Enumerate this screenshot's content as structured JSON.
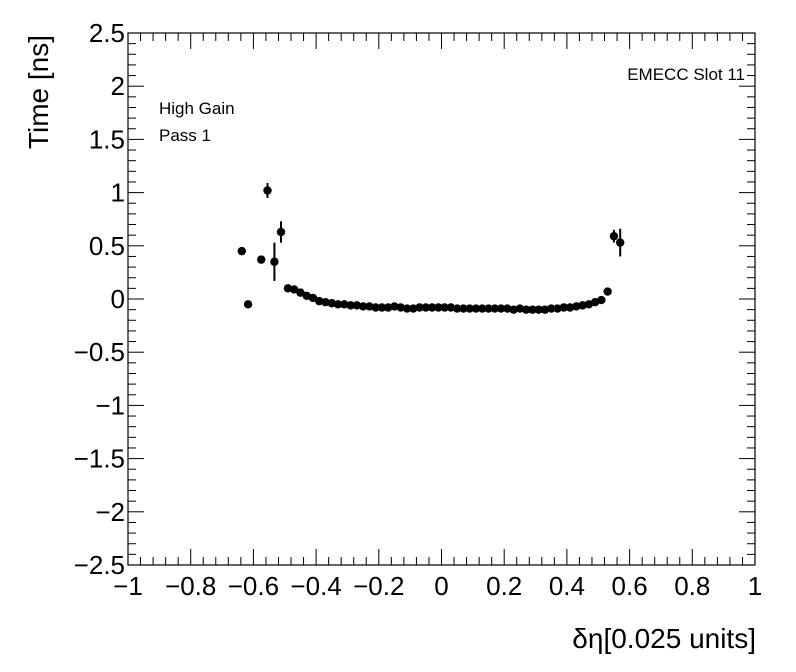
{
  "chart_data": {
    "type": "scatter",
    "title": "",
    "xlabel": "δη[0.025 units]",
    "ylabel": "Time [ns]",
    "xlim": [
      -1,
      1
    ],
    "ylim": [
      -2.5,
      2.5
    ],
    "x_ticks": [
      "−1",
      "−0.8",
      "−0.6",
      "−0.4",
      "−0.2",
      "0",
      "0.2",
      "0.4",
      "0.6",
      "0.8",
      "1"
    ],
    "y_ticks": [
      "−2.5",
      "−2",
      "−1.5",
      "−1",
      "−0.5",
      "0",
      "0.5",
      "1",
      "1.5",
      "2",
      "2.5"
    ],
    "annotations": {
      "slot": "EMECC Slot 11",
      "gain": "High Gain",
      "pass": "Pass 1"
    },
    "grid": false,
    "series": [
      {
        "marker": "circle",
        "color": "#000000",
        "points": [
          {
            "x": -0.637,
            "y": 0.45,
            "err": 0.02
          },
          {
            "x": -0.617,
            "y": -0.05,
            "err": 0.02
          },
          {
            "x": -0.575,
            "y": 0.37,
            "err": 0.03
          },
          {
            "x": -0.555,
            "y": 1.02,
            "err": 0.07
          },
          {
            "x": -0.533,
            "y": 0.35,
            "err": 0.18
          },
          {
            "x": -0.512,
            "y": 0.63,
            "err": 0.1
          },
          {
            "x": -0.49,
            "y": 0.1,
            "err": 0.02
          },
          {
            "x": -0.47,
            "y": 0.09,
            "err": 0.01
          },
          {
            "x": -0.45,
            "y": 0.06,
            "err": 0.01
          },
          {
            "x": -0.43,
            "y": 0.03,
            "err": 0.01
          },
          {
            "x": -0.41,
            "y": 0.01,
            "err": 0.01
          },
          {
            "x": -0.39,
            "y": -0.02,
            "err": 0.01
          },
          {
            "x": -0.37,
            "y": -0.03,
            "err": 0.01
          },
          {
            "x": -0.35,
            "y": -0.04,
            "err": 0.01
          },
          {
            "x": -0.33,
            "y": -0.05,
            "err": 0.01
          },
          {
            "x": -0.31,
            "y": -0.05,
            "err": 0.01
          },
          {
            "x": -0.29,
            "y": -0.06,
            "err": 0.01
          },
          {
            "x": -0.27,
            "y": -0.06,
            "err": 0.01
          },
          {
            "x": -0.25,
            "y": -0.07,
            "err": 0.01
          },
          {
            "x": -0.23,
            "y": -0.07,
            "err": 0.01
          },
          {
            "x": -0.21,
            "y": -0.08,
            "err": 0.01
          },
          {
            "x": -0.19,
            "y": -0.08,
            "err": 0.01
          },
          {
            "x": -0.17,
            "y": -0.08,
            "err": 0.01
          },
          {
            "x": -0.15,
            "y": -0.07,
            "err": 0.01
          },
          {
            "x": -0.13,
            "y": -0.08,
            "err": 0.01
          },
          {
            "x": -0.11,
            "y": -0.09,
            "err": 0.01
          },
          {
            "x": -0.09,
            "y": -0.09,
            "err": 0.01
          },
          {
            "x": -0.07,
            "y": -0.08,
            "err": 0.01
          },
          {
            "x": -0.05,
            "y": -0.08,
            "err": 0.01
          },
          {
            "x": -0.03,
            "y": -0.08,
            "err": 0.01
          },
          {
            "x": -0.01,
            "y": -0.08,
            "err": 0.01
          },
          {
            "x": 0.01,
            "y": -0.08,
            "err": 0.01
          },
          {
            "x": 0.03,
            "y": -0.08,
            "err": 0.01
          },
          {
            "x": 0.05,
            "y": -0.09,
            "err": 0.01
          },
          {
            "x": 0.07,
            "y": -0.09,
            "err": 0.01
          },
          {
            "x": 0.09,
            "y": -0.09,
            "err": 0.01
          },
          {
            "x": 0.11,
            "y": -0.09,
            "err": 0.01
          },
          {
            "x": 0.13,
            "y": -0.09,
            "err": 0.01
          },
          {
            "x": 0.15,
            "y": -0.09,
            "err": 0.01
          },
          {
            "x": 0.17,
            "y": -0.09,
            "err": 0.01
          },
          {
            "x": 0.19,
            "y": -0.09,
            "err": 0.01
          },
          {
            "x": 0.21,
            "y": -0.09,
            "err": 0.01
          },
          {
            "x": 0.23,
            "y": -0.1,
            "err": 0.01
          },
          {
            "x": 0.25,
            "y": -0.09,
            "err": 0.01
          },
          {
            "x": 0.27,
            "y": -0.1,
            "err": 0.01
          },
          {
            "x": 0.29,
            "y": -0.1,
            "err": 0.01
          },
          {
            "x": 0.31,
            "y": -0.1,
            "err": 0.01
          },
          {
            "x": 0.33,
            "y": -0.1,
            "err": 0.01
          },
          {
            "x": 0.35,
            "y": -0.09,
            "err": 0.01
          },
          {
            "x": 0.37,
            "y": -0.09,
            "err": 0.01
          },
          {
            "x": 0.39,
            "y": -0.08,
            "err": 0.01
          },
          {
            "x": 0.41,
            "y": -0.08,
            "err": 0.01
          },
          {
            "x": 0.43,
            "y": -0.07,
            "err": 0.01
          },
          {
            "x": 0.45,
            "y": -0.06,
            "err": 0.01
          },
          {
            "x": 0.47,
            "y": -0.05,
            "err": 0.01
          },
          {
            "x": 0.49,
            "y": -0.03,
            "err": 0.01
          },
          {
            "x": 0.51,
            "y": -0.01,
            "err": 0.01
          },
          {
            "x": 0.53,
            "y": 0.07,
            "err": 0.02
          },
          {
            "x": 0.55,
            "y": 0.59,
            "err": 0.06
          },
          {
            "x": 0.57,
            "y": 0.53,
            "err": 0.13
          }
        ]
      }
    ]
  }
}
